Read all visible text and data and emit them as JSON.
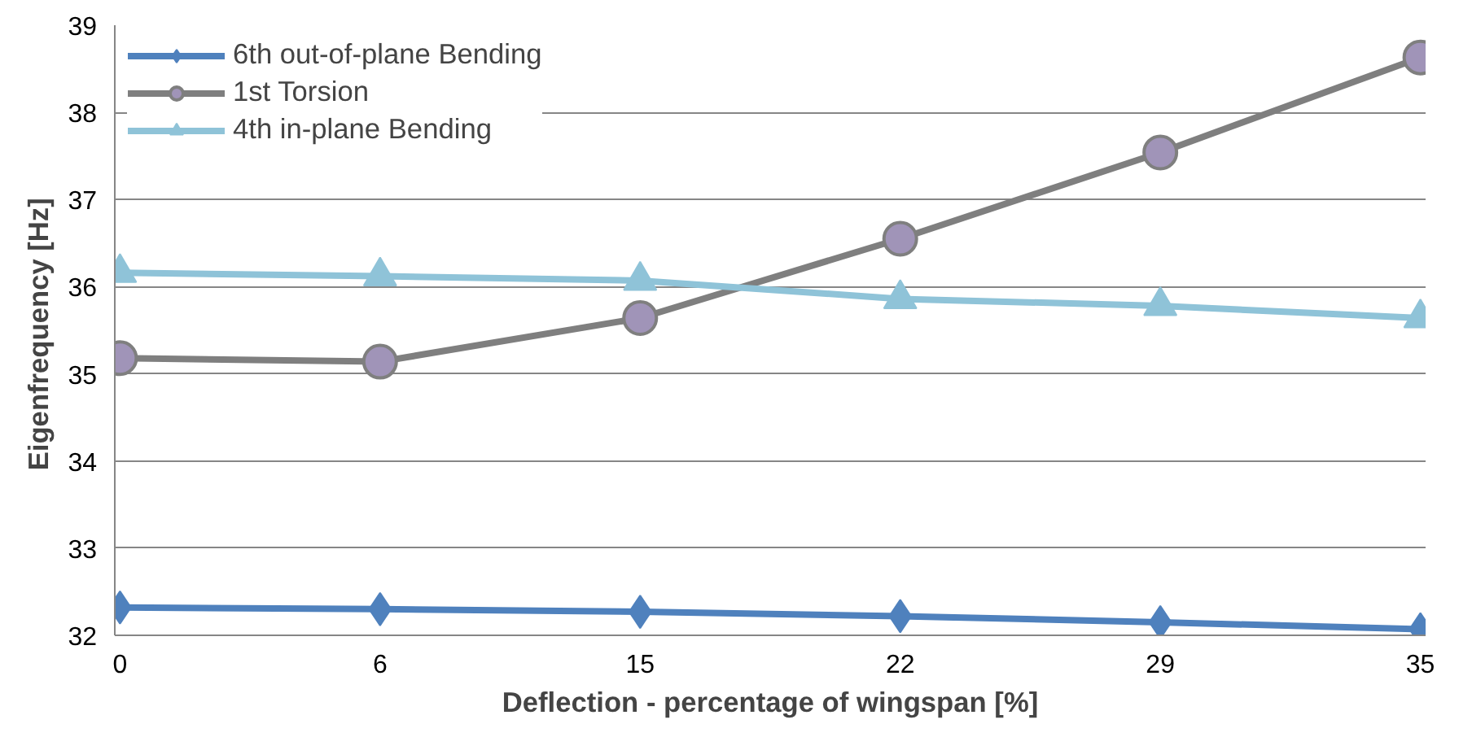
{
  "chart_data": {
    "type": "line",
    "xlabel": "Deflection - percentage of wingspan [%]",
    "ylabel": "Eigenfrequency  [Hz]",
    "categories": [
      "0",
      "6",
      "15",
      "22",
      "29",
      "35"
    ],
    "series": [
      {
        "name": "6th out-of-plane Bending",
        "color": "#4f81bd",
        "marker": "diamond",
        "values": [
          32.32,
          32.3,
          32.27,
          32.22,
          32.15,
          32.07
        ]
      },
      {
        "name": "1st Torsion",
        "color": "#7f7f7f",
        "marker": "circle",
        "values": [
          35.18,
          35.14,
          35.64,
          36.55,
          37.54,
          38.63
        ]
      },
      {
        "name": "4th in-plane Bending",
        "color": "#8fc3d8",
        "marker": "triangle",
        "values": [
          36.16,
          36.12,
          36.07,
          35.86,
          35.78,
          35.64
        ]
      }
    ],
    "ylim": [
      32,
      39
    ],
    "yticks": [
      32,
      33,
      34,
      35,
      36,
      37,
      38,
      39
    ],
    "grid": "y",
    "legend": "top left"
  }
}
